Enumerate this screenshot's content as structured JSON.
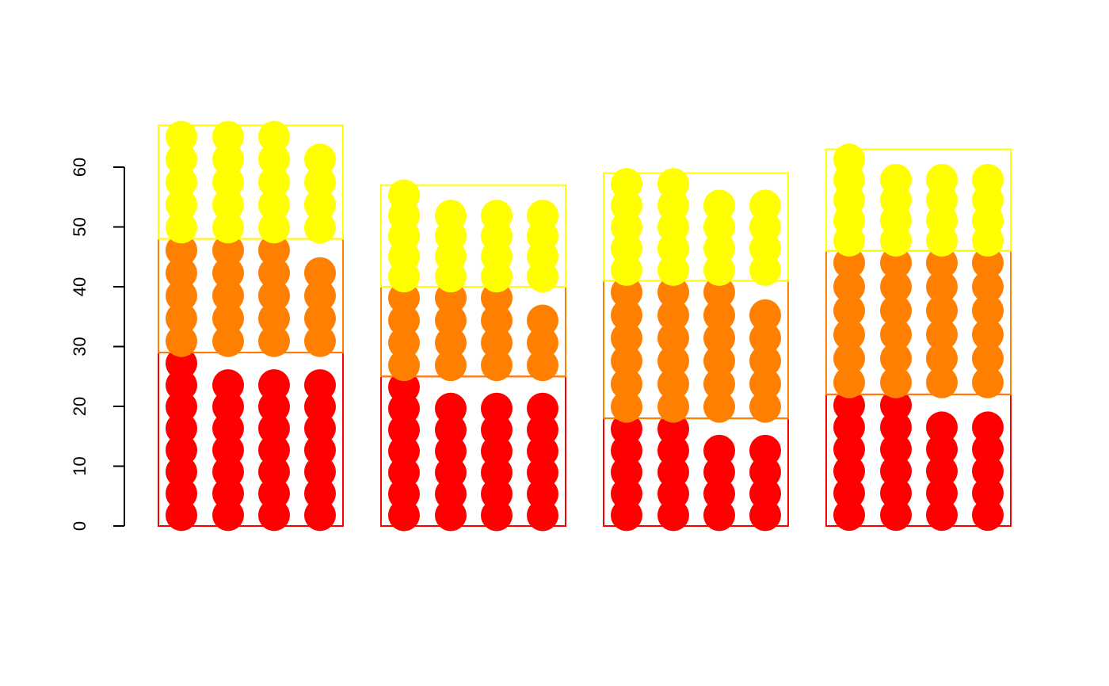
{
  "chart_data": {
    "type": "bar",
    "subtype": "stacked-dot",
    "title": "",
    "xlabel": "",
    "ylabel": "",
    "ylim": [
      0,
      60
    ],
    "yticks": [
      0,
      10,
      20,
      30,
      40,
      50,
      60
    ],
    "ytick_labels": [
      "0",
      "10",
      "20",
      "30",
      "40",
      "50",
      "60"
    ],
    "grid": false,
    "legend": "none",
    "segment_colors": [
      "#ff0000",
      "#ff8000",
      "#ffff00"
    ],
    "groups": [
      {
        "values": [
          29,
          19,
          19
        ]
      },
      {
        "values": [
          25,
          15,
          17
        ]
      },
      {
        "values": [
          18,
          23,
          18
        ]
      },
      {
        "values": [
          22,
          24,
          17
        ]
      }
    ]
  }
}
